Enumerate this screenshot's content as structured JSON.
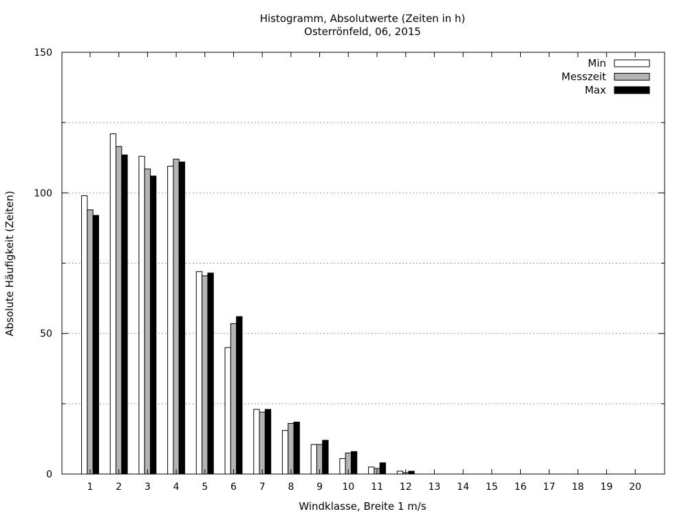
{
  "chart_data": {
    "type": "bar",
    "title": "Histogramm, Absolutwerte (Zeiten in h)",
    "subtitle": "Osterrönfeld, 06, 2015",
    "xlabel": "Windklasse, Breite 1 m/s",
    "ylabel": "Absolute Häufigkeit (Zeiten)",
    "ylim": [
      0,
      150
    ],
    "yticks": [
      "0",
      "50",
      "100",
      "150"
    ],
    "grid": "horizontal dotted at 25-step",
    "legend_placement": "top-right",
    "categories": [
      "1",
      "2",
      "3",
      "4",
      "5",
      "6",
      "7",
      "8",
      "9",
      "10",
      "11",
      "12",
      "13",
      "14",
      "15",
      "16",
      "17",
      "18",
      "19",
      "20"
    ],
    "series": [
      {
        "name": "Min",
        "color": "#ffffff",
        "values": [
          99,
          121,
          113,
          109.5,
          72,
          45,
          23,
          15.5,
          10.5,
          5.5,
          2.5,
          1,
          0,
          0,
          0,
          0,
          0,
          0,
          0,
          0
        ]
      },
      {
        "name": "Messzeit",
        "color": "#b4b4b4",
        "values": [
          94,
          116.5,
          108.5,
          112,
          70.5,
          53.5,
          22,
          18,
          10.5,
          7.5,
          2,
          0.5,
          0,
          0,
          0,
          0,
          0,
          0,
          0,
          0
        ]
      },
      {
        "name": "Max",
        "color": "#000000",
        "values": [
          92,
          113.5,
          106,
          111,
          71.5,
          56,
          23,
          18.5,
          12,
          8,
          4,
          1,
          0,
          0,
          0,
          0,
          0,
          0,
          0,
          0
        ]
      }
    ]
  }
}
